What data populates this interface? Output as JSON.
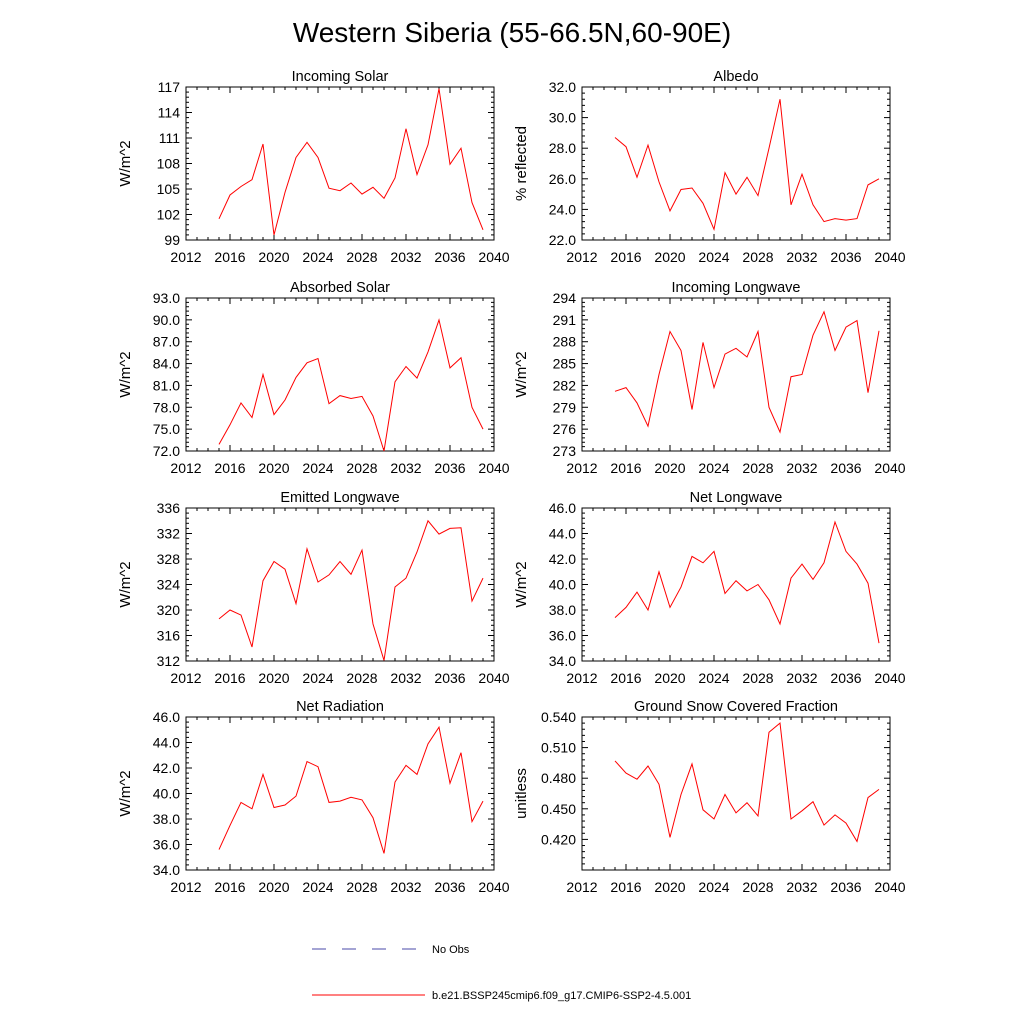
{
  "figure_title": "Western Siberia (55-66.5N,60-90E)",
  "chart_data": [
    {
      "type": "line",
      "title": "Incoming Solar",
      "xlabel": "",
      "ylabel": "W/m^2",
      "xlim": [
        2012,
        2040
      ],
      "ylim": [
        99,
        117
      ],
      "x_ticks": [
        2012,
        2016,
        2020,
        2024,
        2028,
        2032,
        2036,
        2040
      ],
      "x_tick_labels": [
        "2012",
        "2016",
        "2020",
        "2024",
        "2028",
        "2032",
        "2036",
        "2040"
      ],
      "y_ticks": [
        99,
        102,
        105,
        108,
        111,
        114,
        117
      ],
      "y_tick_labels": [
        "99",
        "102",
        "105",
        "108",
        "111",
        "114",
        "117"
      ],
      "series": [
        {
          "name": "b.e21.BSSP245cmip6.f09_g17.CMIP6-SSP2-4.5.001",
          "color": "#ff0000",
          "x": [
            2015,
            2016,
            2017,
            2018,
            2019,
            2020,
            2021,
            2022,
            2023,
            2024,
            2025,
            2026,
            2027,
            2028,
            2029,
            2030,
            2031,
            2032,
            2033,
            2034,
            2035,
            2036,
            2037,
            2038,
            2039
          ],
          "y": [
            101.5,
            104.3,
            105.3,
            106.1,
            110.3,
            99.6,
            104.6,
            108.7,
            110.5,
            108.7,
            105.1,
            104.8,
            105.7,
            104.4,
            105.2,
            103.9,
            106.3,
            112.1,
            106.7,
            110.2,
            116.8,
            107.9,
            109.8,
            103.4,
            100.2
          ]
        }
      ]
    },
    {
      "type": "line",
      "title": "Albedo",
      "xlabel": "",
      "ylabel": "% reflected",
      "xlim": [
        2012,
        2040
      ],
      "ylim": [
        22.0,
        32.0
      ],
      "x_ticks": [
        2012,
        2016,
        2020,
        2024,
        2028,
        2032,
        2036,
        2040
      ],
      "x_tick_labels": [
        "2012",
        "2016",
        "2020",
        "2024",
        "2028",
        "2032",
        "2036",
        "2040"
      ],
      "y_ticks": [
        22,
        24,
        26,
        28,
        30,
        32
      ],
      "y_tick_labels": [
        "22.0",
        "24.0",
        "26.0",
        "28.0",
        "30.0",
        "32.0"
      ],
      "series": [
        {
          "name": "b.e21.BSSP245cmip6.f09_g17.CMIP6-SSP2-4.5.001",
          "color": "#ff0000",
          "x": [
            2015,
            2016,
            2017,
            2018,
            2019,
            2020,
            2021,
            2022,
            2023,
            2024,
            2025,
            2026,
            2027,
            2028,
            2029,
            2030,
            2031,
            2032,
            2033,
            2034,
            2035,
            2036,
            2037,
            2038,
            2039
          ],
          "y": [
            28.7,
            28.1,
            26.1,
            28.2,
            25.8,
            23.9,
            25.3,
            25.4,
            24.4,
            22.7,
            26.4,
            25.0,
            26.1,
            24.9,
            28.0,
            31.2,
            24.3,
            26.3,
            24.3,
            23.2,
            23.4,
            23.3,
            23.4,
            25.6,
            26.0
          ]
        }
      ]
    },
    {
      "type": "line",
      "title": "Absorbed Solar",
      "xlabel": "",
      "ylabel": "W/m^2",
      "xlim": [
        2012,
        2040
      ],
      "ylim": [
        72.0,
        93.0
      ],
      "x_ticks": [
        2012,
        2016,
        2020,
        2024,
        2028,
        2032,
        2036,
        2040
      ],
      "x_tick_labels": [
        "2012",
        "2016",
        "2020",
        "2024",
        "2028",
        "2032",
        "2036",
        "2040"
      ],
      "y_ticks": [
        72,
        75,
        78,
        81,
        84,
        87,
        90,
        93
      ],
      "y_tick_labels": [
        "72.0",
        "75.0",
        "78.0",
        "81.0",
        "84.0",
        "87.0",
        "90.0",
        "93.0"
      ],
      "series": [
        {
          "name": "b.e21.BSSP245cmip6.f09_g17.CMIP6-SSP2-4.5.001",
          "color": "#ff0000",
          "x": [
            2015,
            2016,
            2017,
            2018,
            2019,
            2020,
            2021,
            2022,
            2023,
            2024,
            2025,
            2026,
            2027,
            2028,
            2029,
            2030,
            2031,
            2032,
            2033,
            2034,
            2035,
            2036,
            2037,
            2038,
            2039
          ],
          "y": [
            72.9,
            75.6,
            78.6,
            76.6,
            82.5,
            77.0,
            79.0,
            82.1,
            84.1,
            84.7,
            78.5,
            79.6,
            79.2,
            79.5,
            76.8,
            72.0,
            81.5,
            83.6,
            82.0,
            85.6,
            90.0,
            83.4,
            84.8,
            78.0,
            75.0
          ]
        }
      ]
    },
    {
      "type": "line",
      "title": "Incoming Longwave",
      "xlabel": "",
      "ylabel": "W/m^2",
      "xlim": [
        2012,
        2040
      ],
      "ylim": [
        273,
        294
      ],
      "x_ticks": [
        2012,
        2016,
        2020,
        2024,
        2028,
        2032,
        2036,
        2040
      ],
      "x_tick_labels": [
        "2012",
        "2016",
        "2020",
        "2024",
        "2028",
        "2032",
        "2036",
        "2040"
      ],
      "y_ticks": [
        273,
        276,
        279,
        282,
        285,
        288,
        291,
        294
      ],
      "y_tick_labels": [
        "273",
        "276",
        "279",
        "282",
        "285",
        "288",
        "291",
        "294"
      ],
      "series": [
        {
          "name": "b.e21.BSSP245cmip6.f09_g17.CMIP6-SSP2-4.5.001",
          "color": "#ff0000",
          "x": [
            2015,
            2016,
            2017,
            2018,
            2019,
            2020,
            2021,
            2022,
            2023,
            2024,
            2025,
            2026,
            2027,
            2028,
            2029,
            2030,
            2031,
            2032,
            2033,
            2034,
            2035,
            2036,
            2037,
            2038,
            2039
          ],
          "y": [
            281.2,
            281.7,
            279.6,
            276.4,
            283.5,
            289.4,
            286.8,
            278.7,
            287.9,
            281.7,
            286.3,
            287.1,
            285.9,
            289.4,
            279.0,
            275.6,
            283.2,
            283.5,
            288.9,
            292.1,
            286.8,
            290.0,
            290.9,
            281.0,
            289.5
          ]
        }
      ]
    },
    {
      "type": "line",
      "title": "Emitted Longwave",
      "xlabel": "",
      "ylabel": "W/m^2",
      "xlim": [
        2012,
        2040
      ],
      "ylim": [
        312,
        336
      ],
      "x_ticks": [
        2012,
        2016,
        2020,
        2024,
        2028,
        2032,
        2036,
        2040
      ],
      "x_tick_labels": [
        "2012",
        "2016",
        "2020",
        "2024",
        "2028",
        "2032",
        "2036",
        "2040"
      ],
      "y_ticks": [
        312,
        316,
        320,
        324,
        328,
        332,
        336
      ],
      "y_tick_labels": [
        "312",
        "316",
        "320",
        "324",
        "328",
        "332",
        "336"
      ],
      "series": [
        {
          "name": "b.e21.BSSP245cmip6.f09_g17.CMIP6-SSP2-4.5.001",
          "color": "#ff0000",
          "x": [
            2015,
            2016,
            2017,
            2018,
            2019,
            2020,
            2021,
            2022,
            2023,
            2024,
            2025,
            2026,
            2027,
            2028,
            2029,
            2030,
            2031,
            2032,
            2033,
            2034,
            2035,
            2036,
            2037,
            2038,
            2039
          ],
          "y": [
            318.6,
            320.0,
            319.2,
            314.2,
            324.6,
            327.6,
            326.4,
            321.0,
            329.6,
            324.4,
            325.5,
            327.6,
            325.6,
            329.4,
            317.8,
            312.1,
            323.6,
            325.0,
            329.1,
            334.0,
            331.9,
            332.8,
            332.9,
            321.4,
            325.0
          ]
        }
      ]
    },
    {
      "type": "line",
      "title": "Net Longwave",
      "xlabel": "",
      "ylabel": "W/m^2",
      "xlim": [
        2012,
        2040
      ],
      "ylim": [
        34.0,
        46.0
      ],
      "x_ticks": [
        2012,
        2016,
        2020,
        2024,
        2028,
        2032,
        2036,
        2040
      ],
      "x_tick_labels": [
        "2012",
        "2016",
        "2020",
        "2024",
        "2028",
        "2032",
        "2036",
        "2040"
      ],
      "y_ticks": [
        34,
        36,
        38,
        40,
        42,
        44,
        46
      ],
      "y_tick_labels": [
        "34.0",
        "36.0",
        "38.0",
        "40.0",
        "42.0",
        "44.0",
        "46.0"
      ],
      "series": [
        {
          "name": "b.e21.BSSP245cmip6.f09_g17.CMIP6-SSP2-4.5.001",
          "color": "#ff0000",
          "x": [
            2015,
            2016,
            2017,
            2018,
            2019,
            2020,
            2021,
            2022,
            2023,
            2024,
            2025,
            2026,
            2027,
            2028,
            2029,
            2030,
            2031,
            2032,
            2033,
            2034,
            2035,
            2036,
            2037,
            2038,
            2039
          ],
          "y": [
            37.4,
            38.2,
            39.4,
            38.0,
            41.0,
            38.2,
            39.8,
            42.2,
            41.7,
            42.6,
            39.3,
            40.3,
            39.5,
            40.0,
            38.8,
            36.9,
            40.5,
            41.6,
            40.4,
            41.7,
            44.9,
            42.6,
            41.6,
            40.1,
            35.4
          ]
        }
      ]
    },
    {
      "type": "line",
      "title": "Net Radiation",
      "xlabel": "",
      "ylabel": "W/m^2",
      "xlim": [
        2012,
        2040
      ],
      "ylim": [
        34.0,
        46.0
      ],
      "x_ticks": [
        2012,
        2016,
        2020,
        2024,
        2028,
        2032,
        2036,
        2040
      ],
      "x_tick_labels": [
        "2012",
        "2016",
        "2020",
        "2024",
        "2028",
        "2032",
        "2036",
        "2040"
      ],
      "y_ticks": [
        34,
        36,
        38,
        40,
        42,
        44,
        46
      ],
      "y_tick_labels": [
        "34.0",
        "36.0",
        "38.0",
        "40.0",
        "42.0",
        "44.0",
        "46.0"
      ],
      "series": [
        {
          "name": "b.e21.BSSP245cmip6.f09_g17.CMIP6-SSP2-4.5.001",
          "color": "#ff0000",
          "x": [
            2015,
            2016,
            2017,
            2018,
            2019,
            2020,
            2021,
            2022,
            2023,
            2024,
            2025,
            2026,
            2027,
            2028,
            2029,
            2030,
            2031,
            2032,
            2033,
            2034,
            2035,
            2036,
            2037,
            2038,
            2039
          ],
          "y": [
            35.6,
            37.5,
            39.3,
            38.8,
            41.5,
            38.9,
            39.1,
            39.8,
            42.5,
            42.1,
            39.3,
            39.4,
            39.7,
            39.5,
            38.1,
            35.3,
            40.9,
            42.2,
            41.5,
            43.9,
            45.2,
            40.8,
            43.2,
            37.8,
            39.4
          ]
        }
      ]
    },
    {
      "type": "line",
      "title": "Ground Snow Covered Fraction",
      "xlabel": "",
      "ylabel": "unitless",
      "xlim": [
        2012,
        2040
      ],
      "ylim": [
        0.39,
        0.54
      ],
      "x_ticks": [
        2012,
        2016,
        2020,
        2024,
        2028,
        2032,
        2036,
        2040
      ],
      "x_tick_labels": [
        "2012",
        "2016",
        "2020",
        "2024",
        "2028",
        "2032",
        "2036",
        "2040"
      ],
      "y_ticks": [
        0.42,
        0.45,
        0.48,
        0.51,
        0.54
      ],
      "y_tick_labels": [
        "0.420",
        "0.450",
        "0.480",
        "0.510",
        "0.540"
      ],
      "series": [
        {
          "name": "b.e21.BSSP245cmip6.f09_g17.CMIP6-SSP2-4.5.001",
          "color": "#ff0000",
          "x": [
            2015,
            2016,
            2017,
            2018,
            2019,
            2020,
            2021,
            2022,
            2023,
            2024,
            2025,
            2026,
            2027,
            2028,
            2029,
            2030,
            2031,
            2032,
            2033,
            2034,
            2035,
            2036,
            2037,
            2038,
            2039
          ],
          "y": [
            0.497,
            0.485,
            0.479,
            0.492,
            0.474,
            0.422,
            0.464,
            0.494,
            0.449,
            0.44,
            0.464,
            0.446,
            0.456,
            0.443,
            0.525,
            0.534,
            0.44,
            0.448,
            0.457,
            0.434,
            0.444,
            0.436,
            0.418,
            0.461,
            0.469
          ]
        }
      ]
    }
  ],
  "legend": {
    "items": [
      {
        "label": "No Obs",
        "style": "dashed",
        "color": "#4a4aa8"
      },
      {
        "label": "b.e21.BSSP245cmip6.f09_g17.CMIP6-SSP2-4.5.001",
        "style": "solid",
        "color": "#ff0000"
      }
    ]
  }
}
